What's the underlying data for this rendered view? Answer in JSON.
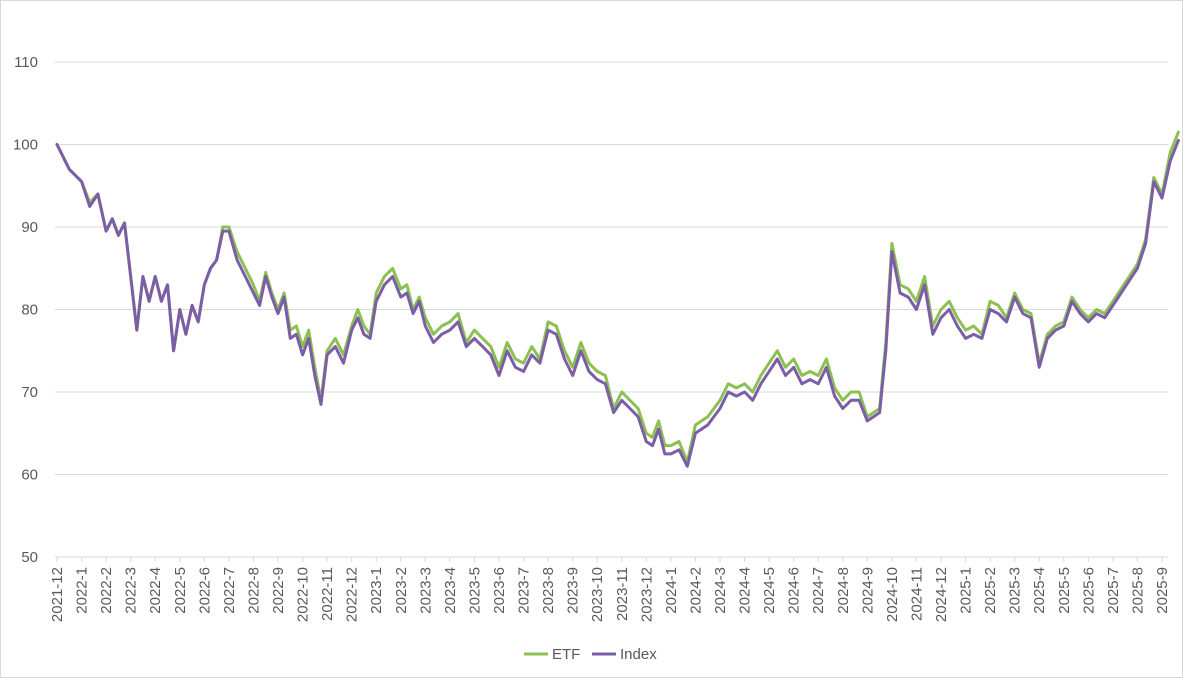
{
  "chart_data": {
    "type": "line",
    "title": "",
    "xlabel": "",
    "ylabel": "",
    "ylim": [
      50,
      110
    ],
    "y_ticks": [
      50,
      60,
      70,
      80,
      90,
      100,
      110
    ],
    "x_tick_labels": [
      "2021-12",
      "2022-1",
      "2022-2",
      "2022-3",
      "2022-4",
      "2022-5",
      "2022-6",
      "2022-7",
      "2022-8",
      "2022-9",
      "2022-10",
      "2022-11",
      "2022-12",
      "2023-1",
      "2023-2",
      "2023-3",
      "2023-4",
      "2023-5",
      "2023-6",
      "2023-7",
      "2023-8",
      "2023-9",
      "2023-10",
      "2023-11",
      "2023-12",
      "2024-1",
      "2024-2",
      "2024-3",
      "2024-4",
      "2024-5",
      "2024-6",
      "2024-7",
      "2024-8",
      "2024-9",
      "2024-10",
      "2024-11",
      "2024-12",
      "2025-1",
      "2025-2",
      "2025-3",
      "2025-4",
      "2025-5",
      "2025-6",
      "2025-7",
      "2025-8",
      "2025-9"
    ],
    "grid": true,
    "legend_position": "bottom",
    "series": [
      {
        "name": "ETF",
        "color": "#8cc152"
      },
      {
        "name": "Index",
        "color": "#7b5ea7"
      }
    ],
    "months": [
      "2021-12",
      "2022-1",
      "2022-2",
      "2022-3",
      "2022-4",
      "2022-5",
      "2022-6",
      "2022-7",
      "2022-8",
      "2022-9",
      "2022-10",
      "2022-11",
      "2022-12",
      "2023-1",
      "2023-2",
      "2023-3",
      "2023-4",
      "2023-5",
      "2023-6",
      "2023-7",
      "2023-8",
      "2023-9",
      "2023-10",
      "2023-11",
      "2023-12",
      "2024-1",
      "2024-2",
      "2024-3",
      "2024-4",
      "2024-5",
      "2024-6",
      "2024-7",
      "2024-8",
      "2024-9",
      "2024-10",
      "2024-11",
      "2024-12",
      "2025-1",
      "2025-2",
      "2025-3",
      "2025-4",
      "2025-5",
      "2025-6",
      "2025-7",
      "2025-8",
      "2025-9"
    ],
    "points": [
      {
        "x": "2021-12",
        "etf": 100.0,
        "index": 100.0
      },
      {
        "x": "2021-12",
        "etf": 97.0,
        "index": 97.0
      },
      {
        "x": "2022-1",
        "etf": 95.5,
        "index": 95.5
      },
      {
        "x": "2022-1",
        "etf": 93.0,
        "index": 92.5
      },
      {
        "x": "2022-1",
        "etf": 94.0,
        "index": 94.0
      },
      {
        "x": "2022-2",
        "etf": 89.5,
        "index": 89.5
      },
      {
        "x": "2022-2",
        "etf": 91.0,
        "index": 91.0
      },
      {
        "x": "2022-2",
        "etf": 89.0,
        "index": 89.0
      },
      {
        "x": "2022-2",
        "etf": 90.5,
        "index": 90.5
      },
      {
        "x": "2022-3",
        "etf": 84.0,
        "index": 84.0
      },
      {
        "x": "2022-3",
        "etf": 77.5,
        "index": 77.5
      },
      {
        "x": "2022-3",
        "etf": 84.0,
        "index": 84.0
      },
      {
        "x": "2022-3",
        "etf": 81.0,
        "index": 81.0
      },
      {
        "x": "2022-4",
        "etf": 84.0,
        "index": 84.0
      },
      {
        "x": "2022-4",
        "etf": 81.0,
        "index": 81.0
      },
      {
        "x": "2022-4",
        "etf": 83.0,
        "index": 83.0
      },
      {
        "x": "2022-4",
        "etf": 75.0,
        "index": 75.0
      },
      {
        "x": "2022-5",
        "etf": 80.0,
        "index": 80.0
      },
      {
        "x": "2022-5",
        "etf": 77.0,
        "index": 77.0
      },
      {
        "x": "2022-5",
        "etf": 80.5,
        "index": 80.5
      },
      {
        "x": "2022-5",
        "etf": 78.5,
        "index": 78.5
      },
      {
        "x": "2022-6",
        "etf": 83.0,
        "index": 83.0
      },
      {
        "x": "2022-6",
        "etf": 85.0,
        "index": 85.0
      },
      {
        "x": "2022-6",
        "etf": 86.0,
        "index": 86.0
      },
      {
        "x": "2022-6",
        "etf": 90.0,
        "index": 89.5
      },
      {
        "x": "2022-7",
        "etf": 90.0,
        "index": 89.5
      },
      {
        "x": "2022-7",
        "etf": 87.0,
        "index": 86.0
      },
      {
        "x": "2022-7",
        "etf": 85.0,
        "index": 84.0
      },
      {
        "x": "2022-8",
        "etf": 83.0,
        "index": 82.0
      },
      {
        "x": "2022-8",
        "etf": 81.0,
        "index": 80.5
      },
      {
        "x": "2022-8",
        "etf": 84.5,
        "index": 84.0
      },
      {
        "x": "2022-8",
        "etf": 82.0,
        "index": 81.5
      },
      {
        "x": "2022-9",
        "etf": 80.0,
        "index": 79.5
      },
      {
        "x": "2022-9",
        "etf": 82.0,
        "index": 81.5
      },
      {
        "x": "2022-9",
        "etf": 77.5,
        "index": 76.5
      },
      {
        "x": "2022-9",
        "etf": 78.0,
        "index": 77.0
      },
      {
        "x": "2022-10",
        "etf": 75.5,
        "index": 74.5
      },
      {
        "x": "2022-10",
        "etf": 77.5,
        "index": 76.5
      },
      {
        "x": "2022-10",
        "etf": 73.0,
        "index": 72.0
      },
      {
        "x": "2022-10",
        "etf": 69.0,
        "index": 68.5
      },
      {
        "x": "2022-11",
        "etf": 75.0,
        "index": 74.5
      },
      {
        "x": "2022-11",
        "etf": 76.5,
        "index": 75.5
      },
      {
        "x": "2022-11",
        "etf": 74.5,
        "index": 73.5
      },
      {
        "x": "2022-12",
        "etf": 78.0,
        "index": 77.5
      },
      {
        "x": "2022-12",
        "etf": 80.0,
        "index": 79.0
      },
      {
        "x": "2022-12",
        "etf": 78.0,
        "index": 77.0
      },
      {
        "x": "2022-12",
        "etf": 77.0,
        "index": 76.5
      },
      {
        "x": "2023-1",
        "etf": 82.0,
        "index": 81.0
      },
      {
        "x": "2023-1",
        "etf": 84.0,
        "index": 83.0
      },
      {
        "x": "2023-1",
        "etf": 85.0,
        "index": 84.0
      },
      {
        "x": "2023-2",
        "etf": 82.5,
        "index": 81.5
      },
      {
        "x": "2023-2",
        "etf": 83.0,
        "index": 82.0
      },
      {
        "x": "2023-2",
        "etf": 80.0,
        "index": 79.5
      },
      {
        "x": "2023-2",
        "etf": 81.5,
        "index": 81.0
      },
      {
        "x": "2023-3",
        "etf": 79.0,
        "index": 78.0
      },
      {
        "x": "2023-3",
        "etf": 77.0,
        "index": 76.0
      },
      {
        "x": "2023-3",
        "etf": 78.0,
        "index": 77.0
      },
      {
        "x": "2023-4",
        "etf": 78.5,
        "index": 77.5
      },
      {
        "x": "2023-4",
        "etf": 79.5,
        "index": 78.5
      },
      {
        "x": "2023-4",
        "etf": 76.0,
        "index": 75.5
      },
      {
        "x": "2023-5",
        "etf": 77.5,
        "index": 76.5
      },
      {
        "x": "2023-5",
        "etf": 76.5,
        "index": 75.5
      },
      {
        "x": "2023-5",
        "etf": 75.5,
        "index": 74.5
      },
      {
        "x": "2023-6",
        "etf": 73.0,
        "index": 72.0
      },
      {
        "x": "2023-6",
        "etf": 76.0,
        "index": 75.0
      },
      {
        "x": "2023-6",
        "etf": 74.0,
        "index": 73.0
      },
      {
        "x": "2023-7",
        "etf": 73.5,
        "index": 72.5
      },
      {
        "x": "2023-7",
        "etf": 75.5,
        "index": 74.5
      },
      {
        "x": "2023-7",
        "etf": 74.0,
        "index": 73.5
      },
      {
        "x": "2023-8",
        "etf": 78.5,
        "index": 77.5
      },
      {
        "x": "2023-8",
        "etf": 78.0,
        "index": 77.0
      },
      {
        "x": "2023-8",
        "etf": 75.0,
        "index": 74.0
      },
      {
        "x": "2023-9",
        "etf": 73.0,
        "index": 72.0
      },
      {
        "x": "2023-9",
        "etf": 76.0,
        "index": 75.0
      },
      {
        "x": "2023-9",
        "etf": 73.5,
        "index": 72.5
      },
      {
        "x": "2023-10",
        "etf": 72.5,
        "index": 71.5
      },
      {
        "x": "2023-10",
        "etf": 72.0,
        "index": 71.0
      },
      {
        "x": "2023-10",
        "etf": 68.0,
        "index": 67.5
      },
      {
        "x": "2023-11",
        "etf": 70.0,
        "index": 69.0
      },
      {
        "x": "2023-11",
        "etf": 69.0,
        "index": 68.0
      },
      {
        "x": "2023-11",
        "etf": 68.0,
        "index": 67.0
      },
      {
        "x": "2023-12",
        "etf": 65.0,
        "index": 64.0
      },
      {
        "x": "2023-12",
        "etf": 64.5,
        "index": 63.5
      },
      {
        "x": "2023-12",
        "etf": 66.5,
        "index": 65.5
      },
      {
        "x": "2023-12",
        "etf": 63.5,
        "index": 62.5
      },
      {
        "x": "2024-1",
        "etf": 63.5,
        "index": 62.5
      },
      {
        "x": "2024-1",
        "etf": 64.0,
        "index": 63.0
      },
      {
        "x": "2024-1",
        "etf": 61.5,
        "index": 61.0
      },
      {
        "x": "2024-2",
        "etf": 66.0,
        "index": 65.0
      },
      {
        "x": "2024-2",
        "etf": 67.0,
        "index": 66.0
      },
      {
        "x": "2024-3",
        "etf": 69.0,
        "index": 68.0
      },
      {
        "x": "2024-3",
        "etf": 71.0,
        "index": 70.0
      },
      {
        "x": "2024-3",
        "etf": 70.5,
        "index": 69.5
      },
      {
        "x": "2024-4",
        "etf": 71.0,
        "index": 70.0
      },
      {
        "x": "2024-4",
        "etf": 70.0,
        "index": 69.0
      },
      {
        "x": "2024-4",
        "etf": 72.0,
        "index": 71.0
      },
      {
        "x": "2024-5",
        "etf": 73.5,
        "index": 72.5
      },
      {
        "x": "2024-5",
        "etf": 75.0,
        "index": 74.0
      },
      {
        "x": "2024-5",
        "etf": 73.0,
        "index": 72.0
      },
      {
        "x": "2024-6",
        "etf": 74.0,
        "index": 73.0
      },
      {
        "x": "2024-6",
        "etf": 72.0,
        "index": 71.0
      },
      {
        "x": "2024-6",
        "etf": 72.5,
        "index": 71.5
      },
      {
        "x": "2024-7",
        "etf": 72.0,
        "index": 71.0
      },
      {
        "x": "2024-7",
        "etf": 74.0,
        "index": 73.0
      },
      {
        "x": "2024-7",
        "etf": 70.5,
        "index": 69.5
      },
      {
        "x": "2024-8",
        "etf": 69.0,
        "index": 68.0
      },
      {
        "x": "2024-8",
        "etf": 70.0,
        "index": 69.0
      },
      {
        "x": "2024-8",
        "etf": 70.0,
        "index": 69.0
      },
      {
        "x": "2024-9",
        "etf": 67.0,
        "index": 66.5
      },
      {
        "x": "2024-9",
        "etf": 67.5,
        "index": 67.0
      },
      {
        "x": "2024-9",
        "etf": 68.0,
        "index": 67.5
      },
      {
        "x": "2024-9",
        "etf": 76.0,
        "index": 75.0
      },
      {
        "x": "2024-10",
        "etf": 88.0,
        "index": 87.0
      },
      {
        "x": "2024-10",
        "etf": 83.0,
        "index": 82.0
      },
      {
        "x": "2024-10",
        "etf": 82.5,
        "index": 81.5
      },
      {
        "x": "2024-11",
        "etf": 81.0,
        "index": 80.0
      },
      {
        "x": "2024-11",
        "etf": 84.0,
        "index": 83.0
      },
      {
        "x": "2024-11",
        "etf": 78.0,
        "index": 77.0
      },
      {
        "x": "2024-12",
        "etf": 80.0,
        "index": 79.0
      },
      {
        "x": "2024-12",
        "etf": 81.0,
        "index": 80.0
      },
      {
        "x": "2024-12",
        "etf": 79.0,
        "index": 78.0
      },
      {
        "x": "2025-1",
        "etf": 77.5,
        "index": 76.5
      },
      {
        "x": "2025-1",
        "etf": 78.0,
        "index": 77.0
      },
      {
        "x": "2025-1",
        "etf": 77.0,
        "index": 76.5
      },
      {
        "x": "2025-2",
        "etf": 81.0,
        "index": 80.0
      },
      {
        "x": "2025-2",
        "etf": 80.5,
        "index": 79.5
      },
      {
        "x": "2025-2",
        "etf": 79.0,
        "index": 78.5
      },
      {
        "x": "2025-3",
        "etf": 82.0,
        "index": 81.5
      },
      {
        "x": "2025-3",
        "etf": 80.0,
        "index": 79.5
      },
      {
        "x": "2025-3",
        "etf": 79.5,
        "index": 79.0
      },
      {
        "x": "2025-4",
        "etf": 73.5,
        "index": 73.0
      },
      {
        "x": "2025-4",
        "etf": 77.0,
        "index": 76.5
      },
      {
        "x": "2025-4",
        "etf": 78.0,
        "index": 77.5
      },
      {
        "x": "2025-5",
        "etf": 78.5,
        "index": 78.0
      },
      {
        "x": "2025-5",
        "etf": 81.5,
        "index": 81.0
      },
      {
        "x": "2025-5",
        "etf": 80.0,
        "index": 79.5
      },
      {
        "x": "2025-6",
        "etf": 79.0,
        "index": 78.5
      },
      {
        "x": "2025-6",
        "etf": 80.0,
        "index": 79.5
      },
      {
        "x": "2025-6",
        "etf": 79.5,
        "index": 79.0
      },
      {
        "x": "2025-7",
        "etf": 81.0,
        "index": 80.5
      },
      {
        "x": "2025-7",
        "etf": 82.5,
        "index": 82.0
      },
      {
        "x": "2025-7",
        "etf": 84.0,
        "index": 83.5
      },
      {
        "x": "2025-8",
        "etf": 85.5,
        "index": 85.0
      },
      {
        "x": "2025-8",
        "etf": 88.5,
        "index": 88.0
      },
      {
        "x": "2025-8",
        "etf": 96.0,
        "index": 95.5
      },
      {
        "x": "2025-9",
        "etf": 94.0,
        "index": 93.5
      },
      {
        "x": "2025-9",
        "etf": 99.0,
        "index": 98.0
      },
      {
        "x": "2025-9",
        "etf": 101.5,
        "index": 100.5
      }
    ]
  }
}
